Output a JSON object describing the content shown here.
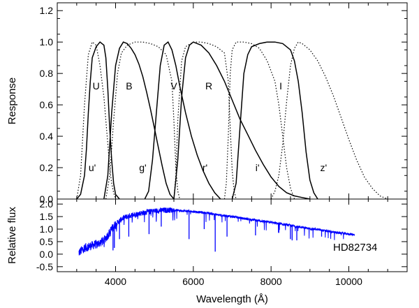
{
  "chart_data": [
    {
      "type": "line",
      "name": "filter-response",
      "xlim": [
        2500,
        11500
      ],
      "ylim": [
        0.0,
        1.25
      ],
      "ylabel": "Response",
      "xlabel": "",
      "yticks": [
        0.0,
        0.2,
        0.4,
        0.6,
        0.8,
        1.0,
        1.2
      ],
      "ytick_labels": [
        "0.0",
        "0.2",
        "0.4",
        "0.6",
        "0.8",
        "1.0",
        "1.2"
      ],
      "series": [
        {
          "name": "U",
          "style": "solid",
          "label_pos": {
            "x": 3500,
            "y": 0.72
          },
          "x": [
            3000,
            3100,
            3200,
            3250,
            3300,
            3350,
            3400,
            3500,
            3600,
            3700,
            3750,
            3800,
            3850,
            3900,
            3950,
            4000,
            4100
          ],
          "y": [
            0.0,
            0.03,
            0.15,
            0.32,
            0.55,
            0.75,
            0.9,
            0.97,
            1.0,
            0.98,
            0.9,
            0.7,
            0.45,
            0.25,
            0.1,
            0.03,
            0.0
          ]
        },
        {
          "name": "B",
          "style": "solid",
          "label_pos": {
            "x": 4350,
            "y": 0.72
          },
          "x": [
            3700,
            3800,
            3900,
            4000,
            4100,
            4200,
            4300,
            4400,
            4500,
            4600,
            4700,
            4800,
            4900,
            5000,
            5100,
            5200,
            5300,
            5400,
            5500
          ],
          "y": [
            0.0,
            0.15,
            0.55,
            0.85,
            0.96,
            1.0,
            0.99,
            0.96,
            0.92,
            0.86,
            0.78,
            0.68,
            0.57,
            0.45,
            0.33,
            0.21,
            0.1,
            0.03,
            0.0
          ]
        },
        {
          "name": "V",
          "style": "solid",
          "label_pos": {
            "x": 5500,
            "y": 0.72
          },
          "x": [
            4750,
            4850,
            4950,
            5050,
            5150,
            5250,
            5350,
            5450,
            5550,
            5650,
            5800,
            5950,
            6100,
            6250,
            6400,
            6550,
            6700
          ],
          "y": [
            0.0,
            0.05,
            0.25,
            0.55,
            0.85,
            0.98,
            1.0,
            0.95,
            0.85,
            0.72,
            0.55,
            0.4,
            0.28,
            0.18,
            0.1,
            0.04,
            0.0
          ]
        },
        {
          "name": "R",
          "style": "solid",
          "label_pos": {
            "x": 6400,
            "y": 0.72
          },
          "x": [
            5500,
            5600,
            5700,
            5800,
            5900,
            6000,
            6200,
            6400,
            6600,
            6800,
            7000,
            7200,
            7400,
            7600,
            7800,
            8000,
            8200,
            8400,
            8600,
            8800,
            9000
          ],
          "y": [
            0.0,
            0.25,
            0.65,
            0.9,
            0.98,
            1.0,
            0.98,
            0.93,
            0.85,
            0.75,
            0.63,
            0.51,
            0.41,
            0.31,
            0.22,
            0.14,
            0.08,
            0.04,
            0.02,
            0.01,
            0.0
          ]
        },
        {
          "name": "I",
          "style": "solid",
          "label_pos": {
            "x": 8250,
            "y": 0.72
          },
          "x": [
            7000,
            7100,
            7200,
            7300,
            7400,
            7500,
            7700,
            7900,
            8100,
            8300,
            8500,
            8600,
            8700,
            8800,
            8900,
            9000,
            9100,
            9200
          ],
          "y": [
            0.0,
            0.1,
            0.45,
            0.8,
            0.92,
            0.97,
            0.99,
            1.0,
            1.0,
            0.99,
            0.95,
            0.88,
            0.75,
            0.55,
            0.3,
            0.12,
            0.04,
            0.0
          ]
        },
        {
          "name": "u'",
          "style": "dotted",
          "label_pos": {
            "x": 3400,
            "y": 0.2
          },
          "x": [
            3000,
            3100,
            3200,
            3300,
            3400,
            3500,
            3600,
            3700,
            3750,
            3800,
            3850,
            3900,
            3950,
            4000
          ],
          "y": [
            0.0,
            0.15,
            0.6,
            0.92,
            1.0,
            0.98,
            0.85,
            0.65,
            0.5,
            0.35,
            0.2,
            0.1,
            0.04,
            0.0
          ]
        },
        {
          "name": "g'",
          "style": "dotted",
          "label_pos": {
            "x": 4700,
            "y": 0.2
          },
          "x": [
            3750,
            3850,
            3950,
            4050,
            4150,
            4300,
            4500,
            4700,
            4900,
            5100,
            5300,
            5450,
            5500,
            5550,
            5600,
            5650
          ],
          "y": [
            0.0,
            0.15,
            0.5,
            0.8,
            0.93,
            0.98,
            1.0,
            1.0,
            0.99,
            0.97,
            0.92,
            0.75,
            0.5,
            0.2,
            0.05,
            0.0
          ]
        },
        {
          "name": "r'",
          "style": "dotted",
          "label_pos": {
            "x": 6300,
            "y": 0.2
          },
          "x": [
            5500,
            5550,
            5600,
            5700,
            5800,
            6000,
            6200,
            6400,
            6600,
            6800,
            6900,
            6950,
            7000,
            7050,
            7100
          ],
          "y": [
            0.0,
            0.15,
            0.5,
            0.88,
            0.97,
            1.0,
            1.0,
            0.99,
            0.97,
            0.93,
            0.75,
            0.45,
            0.18,
            0.05,
            0.0
          ]
        },
        {
          "name": "i'",
          "style": "dotted",
          "label_pos": {
            "x": 7650,
            "y": 0.2
          },
          "x": [
            6800,
            6850,
            6900,
            6950,
            7000,
            7100,
            7300,
            7500,
            7700,
            7900,
            8100,
            8200,
            8300,
            8400,
            8500,
            8600
          ],
          "y": [
            0.0,
            0.1,
            0.4,
            0.8,
            0.95,
            1.0,
            1.0,
            0.99,
            0.96,
            0.88,
            0.75,
            0.6,
            0.4,
            0.2,
            0.07,
            0.0
          ]
        },
        {
          "name": "z'",
          "style": "dotted",
          "label_pos": {
            "x": 9350,
            "y": 0.2
          },
          "x": [
            8000,
            8100,
            8200,
            8300,
            8400,
            8500,
            8600,
            8700,
            8800,
            9000,
            9200,
            9400,
            9600,
            9800,
            10000,
            10200,
            10400,
            10600,
            10800,
            11000
          ],
          "y": [
            0.0,
            0.05,
            0.15,
            0.35,
            0.62,
            0.85,
            0.96,
            1.0,
            0.99,
            0.95,
            0.88,
            0.78,
            0.66,
            0.52,
            0.38,
            0.25,
            0.14,
            0.07,
            0.02,
            0.0
          ]
        }
      ]
    },
    {
      "type": "line",
      "name": "stellar-spectrum",
      "xlim": [
        2500,
        11500
      ],
      "ylim": [
        -0.7,
        2.2
      ],
      "xlabel": "Wavelength (Å)",
      "ylabel": "Relative flux",
      "xticks": [
        4000,
        6000,
        8000,
        10000
      ],
      "xtick_labels": [
        "4000",
        "6000",
        "8000",
        "10000"
      ],
      "yticks": [
        -0.5,
        0.0,
        0.5,
        1.0,
        1.5,
        2.0
      ],
      "ytick_labels": [
        "-0.5",
        "0.0",
        "0.5",
        "1.0",
        "1.5",
        "2.0"
      ],
      "annotation": "HD82734",
      "color": "#0000ff",
      "series": [
        {
          "name": "HD82734",
          "x": [
            3050,
            3200,
            3400,
            3600,
            3700,
            3800,
            3900,
            4000,
            4200,
            4400,
            4600,
            4800,
            5000,
            5200,
            5400,
            5600,
            5800,
            6000,
            6200,
            6400,
            6600,
            6800,
            7000,
            7200,
            7400,
            7600,
            7800,
            8000,
            8200,
            8400,
            8600,
            8800,
            9000,
            9200,
            9400,
            9600,
            9800,
            10000,
            10150
          ],
          "y": [
            0.05,
            0.25,
            0.35,
            0.45,
            0.55,
            0.75,
            1.0,
            1.2,
            1.45,
            1.55,
            1.62,
            1.68,
            1.72,
            1.75,
            1.76,
            1.75,
            1.72,
            1.7,
            1.67,
            1.63,
            1.58,
            1.54,
            1.5,
            1.45,
            1.4,
            1.36,
            1.31,
            1.27,
            1.22,
            1.17,
            1.12,
            1.07,
            1.02,
            0.98,
            0.93,
            0.88,
            0.84,
            0.8,
            0.78
          ],
          "absorption_lines": [
            {
              "x": 3934,
              "y": 0.15
            },
            {
              "x": 3969,
              "y": 0.25
            },
            {
              "x": 4101,
              "y": 0.6
            },
            {
              "x": 4340,
              "y": 0.7
            },
            {
              "x": 4861,
              "y": 0.8
            },
            {
              "x": 5175,
              "y": 1.1
            },
            {
              "x": 5890,
              "y": 0.6
            },
            {
              "x": 6280,
              "y": 1.0
            },
            {
              "x": 6563,
              "y": 0.1
            },
            {
              "x": 6867,
              "y": 0.7
            },
            {
              "x": 7600,
              "y": 0.75
            },
            {
              "x": 8200,
              "y": 0.85
            },
            {
              "x": 8498,
              "y": 0.6
            },
            {
              "x": 8542,
              "y": 0.55
            },
            {
              "x": 8662,
              "y": 0.55
            },
            {
              "x": 9300,
              "y": 0.7
            }
          ]
        }
      ]
    }
  ]
}
